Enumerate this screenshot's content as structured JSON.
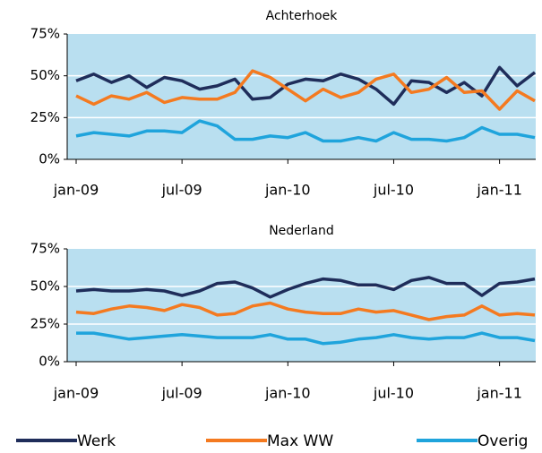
{
  "chart_data": [
    {
      "type": "line",
      "title": "Achterhoek",
      "categories": [
        "jan-09",
        null,
        null,
        null,
        null,
        null,
        "jul-09",
        null,
        null,
        null,
        null,
        null,
        "jan-10",
        null,
        null,
        null,
        null,
        null,
        "jul-10",
        null,
        null,
        null,
        null,
        null,
        "jan-11",
        null,
        null
      ],
      "ylim": [
        0,
        75
      ],
      "yticks": [
        {
          "value": 0,
          "label": "0%"
        },
        {
          "value": 25,
          "label": "25%"
        },
        {
          "value": 50,
          "label": "50%"
        },
        {
          "value": 75,
          "label": "75%"
        }
      ],
      "grid": true,
      "series": [
        {
          "name": "Werk",
          "color": "#1f2d5a",
          "values": [
            47,
            51,
            46,
            50,
            43,
            49,
            47,
            42,
            44,
            48,
            36,
            37,
            45,
            48,
            47,
            51,
            48,
            42,
            33,
            47,
            46,
            40,
            46,
            38,
            55,
            44,
            52
          ]
        },
        {
          "name": "Max WW",
          "color": "#f47a20",
          "values": [
            38,
            33,
            38,
            36,
            40,
            34,
            37,
            36,
            36,
            40,
            53,
            49,
            42,
            35,
            42,
            37,
            40,
            48,
            51,
            40,
            42,
            49,
            40,
            41,
            30,
            41,
            35
          ]
        },
        {
          "name": "Overig",
          "color": "#1fa4dc",
          "values": [
            14,
            16,
            15,
            14,
            17,
            17,
            16,
            23,
            20,
            12,
            12,
            14,
            13,
            16,
            11,
            11,
            13,
            11,
            16,
            12,
            12,
            11,
            13,
            19,
            15,
            15,
            13
          ]
        }
      ]
    },
    {
      "type": "line",
      "title": "Nederland",
      "categories": [
        "jan-09",
        null,
        null,
        null,
        null,
        null,
        "jul-09",
        null,
        null,
        null,
        null,
        null,
        "jan-10",
        null,
        null,
        null,
        null,
        null,
        "jul-10",
        null,
        null,
        null,
        null,
        null,
        "jan-11",
        null,
        null
      ],
      "ylim": [
        0,
        75
      ],
      "yticks": [
        {
          "value": 0,
          "label": "0%"
        },
        {
          "value": 25,
          "label": "25%"
        },
        {
          "value": 50,
          "label": "50%"
        },
        {
          "value": 75,
          "label": "75%"
        }
      ],
      "grid": true,
      "series": [
        {
          "name": "Werk",
          "color": "#1f2d5a",
          "values": [
            47,
            48,
            47,
            47,
            48,
            47,
            44,
            47,
            52,
            53,
            49,
            43,
            48,
            52,
            55,
            54,
            51,
            51,
            48,
            54,
            56,
            52,
            52,
            44,
            52,
            53,
            55
          ]
        },
        {
          "name": "Max WW",
          "color": "#f47a20",
          "values": [
            33,
            32,
            35,
            37,
            36,
            34,
            38,
            36,
            31,
            32,
            37,
            39,
            35,
            33,
            32,
            32,
            35,
            33,
            34,
            31,
            28,
            30,
            31,
            37,
            31,
            32,
            31
          ]
        },
        {
          "name": "Overig",
          "color": "#1fa4dc",
          "values": [
            19,
            19,
            17,
            15,
            16,
            17,
            18,
            17,
            16,
            16,
            16,
            18,
            15,
            15,
            12,
            13,
            15,
            16,
            18,
            16,
            15,
            16,
            16,
            19,
            16,
            16,
            14
          ]
        }
      ]
    }
  ]
}
